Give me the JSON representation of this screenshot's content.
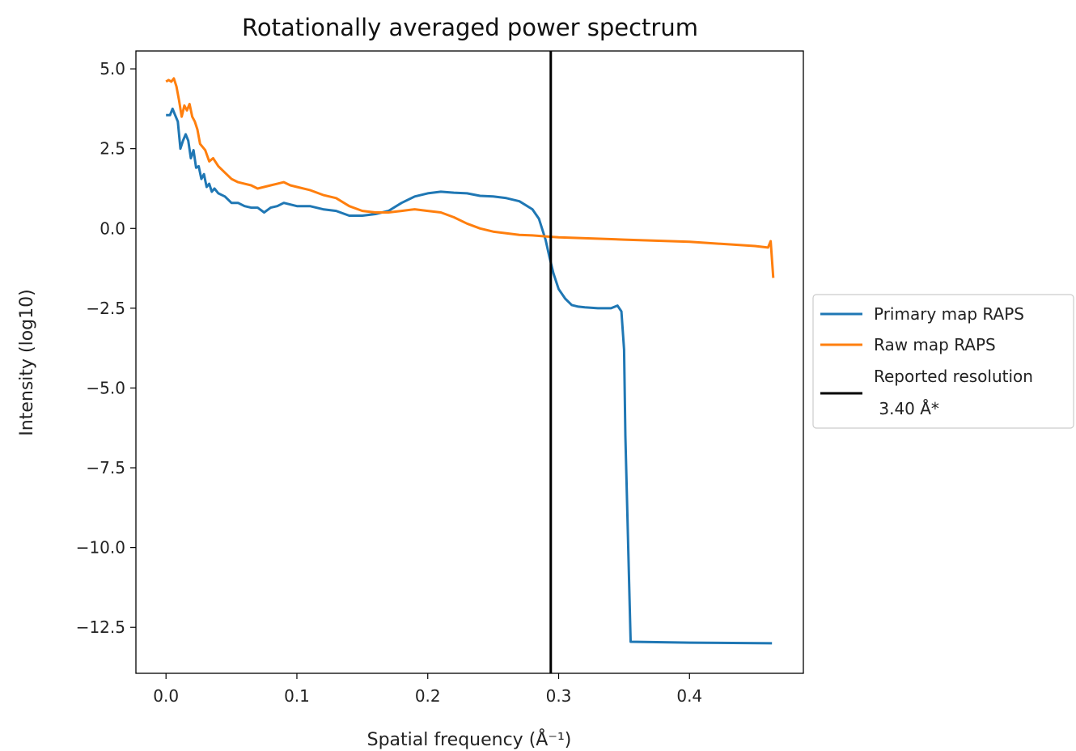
{
  "chart_data": {
    "type": "line",
    "title": "Rotationally averaged power spectrum",
    "xlabel": "Spatial frequency (Å⁻¹)",
    "ylabel": "Intensity (log10)",
    "xlim": [
      -0.023,
      0.487
    ],
    "ylim": [
      -13.94,
      5.56
    ],
    "x_ticks": [
      0.0,
      0.1,
      0.2,
      0.3,
      0.4
    ],
    "x_tick_labels": [
      "0.0",
      "0.1",
      "0.2",
      "0.3",
      "0.4"
    ],
    "y_ticks": [
      5.0,
      2.5,
      0.0,
      -2.5,
      -5.0,
      -7.5,
      -10.0,
      -12.5
    ],
    "y_tick_labels": [
      "5.0",
      "2.5",
      "0.0",
      "−2.5",
      "−5.0",
      "−7.5",
      "−10.0",
      "−12.5"
    ],
    "grid": false,
    "legend_position": "outside right",
    "series": [
      {
        "name": "Primary map RAPS",
        "color": "#1f77b4",
        "x": [
          0.0,
          0.003,
          0.005,
          0.007,
          0.009,
          0.011,
          0.013,
          0.015,
          0.017,
          0.019,
          0.021,
          0.023,
          0.025,
          0.027,
          0.029,
          0.031,
          0.033,
          0.035,
          0.037,
          0.04,
          0.045,
          0.05,
          0.055,
          0.06,
          0.065,
          0.07,
          0.075,
          0.08,
          0.085,
          0.09,
          0.095,
          0.1,
          0.11,
          0.12,
          0.13,
          0.14,
          0.15,
          0.16,
          0.17,
          0.18,
          0.19,
          0.2,
          0.21,
          0.22,
          0.23,
          0.24,
          0.25,
          0.26,
          0.27,
          0.28,
          0.285,
          0.29,
          0.293,
          0.296,
          0.3,
          0.305,
          0.31,
          0.315,
          0.32,
          0.33,
          0.34,
          0.345,
          0.348,
          0.35,
          0.351,
          0.355,
          0.4,
          0.463
        ],
        "y": [
          3.55,
          3.55,
          3.75,
          3.55,
          3.35,
          2.5,
          2.75,
          2.95,
          2.75,
          2.2,
          2.45,
          1.9,
          1.95,
          1.55,
          1.7,
          1.3,
          1.4,
          1.15,
          1.25,
          1.1,
          1.0,
          0.8,
          0.8,
          0.7,
          0.65,
          0.65,
          0.5,
          0.65,
          0.7,
          0.8,
          0.75,
          0.7,
          0.7,
          0.6,
          0.55,
          0.4,
          0.4,
          0.45,
          0.55,
          0.8,
          1.0,
          1.1,
          1.15,
          1.12,
          1.1,
          1.02,
          1.0,
          0.95,
          0.85,
          0.6,
          0.3,
          -0.35,
          -0.9,
          -1.4,
          -1.9,
          -2.2,
          -2.4,
          -2.45,
          -2.47,
          -2.5,
          -2.5,
          -2.42,
          -2.6,
          -3.8,
          -6.5,
          -12.95,
          -12.98,
          -13.0
        ]
      },
      {
        "name": "Raw map RAPS",
        "color": "#ff7f0e",
        "x": [
          0.0,
          0.002,
          0.004,
          0.006,
          0.008,
          0.01,
          0.012,
          0.014,
          0.016,
          0.018,
          0.02,
          0.022,
          0.024,
          0.026,
          0.028,
          0.03,
          0.033,
          0.036,
          0.04,
          0.045,
          0.05,
          0.055,
          0.06,
          0.065,
          0.07,
          0.075,
          0.08,
          0.085,
          0.09,
          0.095,
          0.1,
          0.11,
          0.12,
          0.13,
          0.14,
          0.15,
          0.16,
          0.17,
          0.18,
          0.19,
          0.2,
          0.21,
          0.22,
          0.23,
          0.24,
          0.25,
          0.26,
          0.27,
          0.28,
          0.29,
          0.3,
          0.35,
          0.4,
          0.45,
          0.46,
          0.462,
          0.464
        ],
        "y": [
          4.6,
          4.65,
          4.6,
          4.7,
          4.45,
          4.0,
          3.5,
          3.85,
          3.7,
          3.9,
          3.5,
          3.35,
          3.1,
          2.65,
          2.55,
          2.45,
          2.1,
          2.2,
          1.95,
          1.75,
          1.55,
          1.45,
          1.4,
          1.35,
          1.25,
          1.3,
          1.35,
          1.4,
          1.45,
          1.35,
          1.3,
          1.2,
          1.05,
          0.95,
          0.7,
          0.55,
          0.5,
          0.5,
          0.55,
          0.6,
          0.55,
          0.5,
          0.35,
          0.15,
          0.0,
          -0.1,
          -0.15,
          -0.2,
          -0.22,
          -0.25,
          -0.28,
          -0.35,
          -0.42,
          -0.55,
          -0.6,
          -0.4,
          -1.55
        ]
      },
      {
        "name": "Reported resolution\n 3.40 Å*",
        "color": "#000000",
        "vline_x": 0.294
      }
    ]
  },
  "legend": {
    "items": [
      {
        "label": "Primary map RAPS",
        "color": "#1f77b4"
      },
      {
        "label": "Raw map RAPS",
        "color": "#ff7f0e"
      },
      {
        "label": "Reported resolution",
        "label_line2": " 3.40 Å*",
        "color": "#000000"
      }
    ]
  }
}
